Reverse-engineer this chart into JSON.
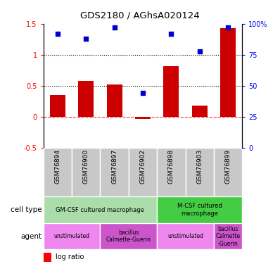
{
  "title": "GDS2180 / AGhsA020124",
  "samples": [
    "GSM76894",
    "GSM76900",
    "GSM76897",
    "GSM76902",
    "GSM76898",
    "GSM76903",
    "GSM76899"
  ],
  "log_ratio": [
    0.35,
    0.58,
    0.52,
    -0.04,
    0.82,
    0.18,
    1.43
  ],
  "percentile_rank": [
    92,
    88,
    97,
    44,
    92,
    78,
    97
  ],
  "bar_color": "#cc0000",
  "dot_color": "#0000cc",
  "ylim_left": [
    -0.5,
    1.5
  ],
  "ylim_right": [
    0,
    100
  ],
  "yticks_left": [
    -0.5,
    0,
    0.5,
    1.0,
    1.5
  ],
  "yticks_right": [
    0,
    25,
    50,
    75,
    100
  ],
  "ytick_labels_left": [
    "-0.5",
    "0",
    "0.5",
    "1",
    "1.5"
  ],
  "ytick_labels_right": [
    "0",
    "25",
    "50",
    "75",
    "100%"
  ],
  "hlines": [
    0.5,
    1.0
  ],
  "cell_type_groups": [
    {
      "label": "GM-CSF cultured macrophage",
      "start": 0,
      "end": 4,
      "color": "#aaddaa"
    },
    {
      "label": "M-CSF cultured\nmacrophage",
      "start": 4,
      "end": 7,
      "color": "#44cc44"
    }
  ],
  "agent_groups": [
    {
      "label": "unstimulated",
      "start": 0,
      "end": 2,
      "color": "#ee88ee"
    },
    {
      "label": "bacillus\nCalmette-Guerin",
      "start": 2,
      "end": 4,
      "color": "#cc55cc"
    },
    {
      "label": "unstimulated",
      "start": 4,
      "end": 6,
      "color": "#ee88ee"
    },
    {
      "label": "bacillus\nCalmette\n-Guerin",
      "start": 6,
      "end": 7,
      "color": "#cc55cc"
    }
  ],
  "sample_col_color": "#c8c8c8",
  "left_label_color": "#444444",
  "arrow_color": "#888888"
}
